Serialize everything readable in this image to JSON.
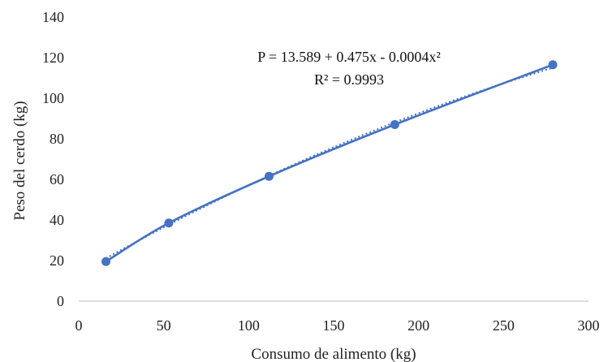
{
  "chart_data": {
    "type": "scatter",
    "title": "",
    "xlabel": "Consumo de alimento (kg)",
    "ylabel": "Peso del cerdo (kg)",
    "xlim": [
      0,
      300
    ],
    "ylim": [
      0,
      140
    ],
    "x_ticks": [
      "0",
      "50",
      "100",
      "150",
      "200",
      "250",
      "300"
    ],
    "y_ticks": [
      "0",
      "20",
      "40",
      "60",
      "80",
      "100",
      "120",
      "140"
    ],
    "grid": false,
    "legend": "none",
    "series": [
      {
        "color": "#4472c4",
        "marker": "circle",
        "line": "smooth",
        "points": [
          {
            "x": 16,
            "y": 19.5
          },
          {
            "x": 53,
            "y": 38.5
          },
          {
            "x": 112,
            "y": 61.5
          },
          {
            "x": 186,
            "y": 87
          },
          {
            "x": 279,
            "y": 116.5
          }
        ]
      }
    ],
    "trendline": {
      "type": "polynomial",
      "order": 2,
      "coefficients": [
        13.589,
        0.475,
        -0.0004
      ],
      "style": "dotted",
      "color": "#4472c4",
      "equation": "P = 13.589 + 0.475x - 0.0004x²",
      "r_squared": "R² = 0.9993"
    }
  }
}
